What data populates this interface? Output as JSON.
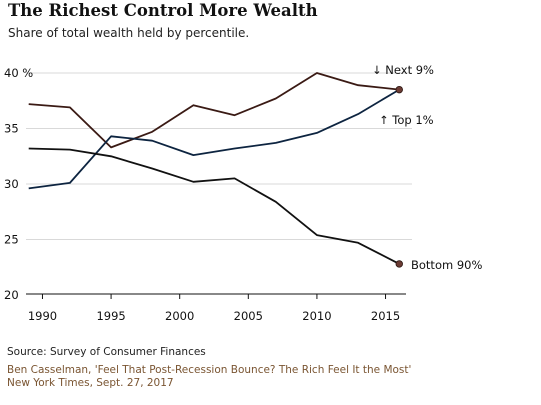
{
  "title": "The Richest Control More Wealth",
  "subtitle": "Share of total wealth held by percentile.",
  "source": "Source: Survey of Consumer Finances",
  "credit": {
    "line1": "Ben Casselman, 'Feel That Post-Recession Bounce? The Rich Feel It the Most'",
    "line2": "New York Times, Sept. 27, 2017"
  },
  "colors": {
    "grid": "#d9d9d9",
    "axis": "#111111",
    "endpoint": "#6b3b34"
  },
  "chart_data": {
    "type": "line",
    "title": "The Richest Control More Wealth",
    "subtitle": "Share of total wealth held by percentile.",
    "xlabel": "",
    "ylabel": "",
    "xlim": [
      1988.8,
      2016.2
    ],
    "ylim": [
      20,
      40
    ],
    "grid": true,
    "x_ticks": [
      1990,
      1995,
      2000,
      2005,
      2010,
      2015
    ],
    "x_tick_labels": [
      "1990",
      "1995",
      "2000",
      "2005",
      "2010",
      "2015"
    ],
    "y_ticks": [
      20,
      25,
      30,
      35,
      40
    ],
    "y_tick_labels": [
      "20",
      "25",
      "30",
      "35",
      "40 %"
    ],
    "series": [
      {
        "name": "Next 9%",
        "label": "↓ Next 9%",
        "color": "#3a1a14",
        "endpoint_marker": true,
        "x": [
          1989,
          1992,
          1995,
          1998,
          2001,
          2004,
          2007,
          2010,
          2013,
          2016
        ],
        "y": [
          37.2,
          36.9,
          33.3,
          34.7,
          37.1,
          36.2,
          37.7,
          40.0,
          38.9,
          38.5
        ]
      },
      {
        "name": "Top 1%",
        "label": "↑ Top 1%",
        "color": "#0d2440",
        "endpoint_marker": false,
        "x": [
          1989,
          1992,
          1995,
          1998,
          2001,
          2004,
          2007,
          2010,
          2013,
          2016
        ],
        "y": [
          29.6,
          30.1,
          34.3,
          33.9,
          32.6,
          33.2,
          33.7,
          34.6,
          36.3,
          38.5
        ]
      },
      {
        "name": "Bottom 90%",
        "label": "Bottom 90%",
        "color": "#111111",
        "endpoint_marker": true,
        "x": [
          1989,
          1992,
          1995,
          1998,
          2001,
          2004,
          2007,
          2010,
          2013,
          2016
        ],
        "y": [
          33.2,
          33.1,
          32.5,
          31.4,
          30.2,
          30.5,
          28.4,
          25.4,
          24.7,
          22.8
        ]
      }
    ]
  }
}
